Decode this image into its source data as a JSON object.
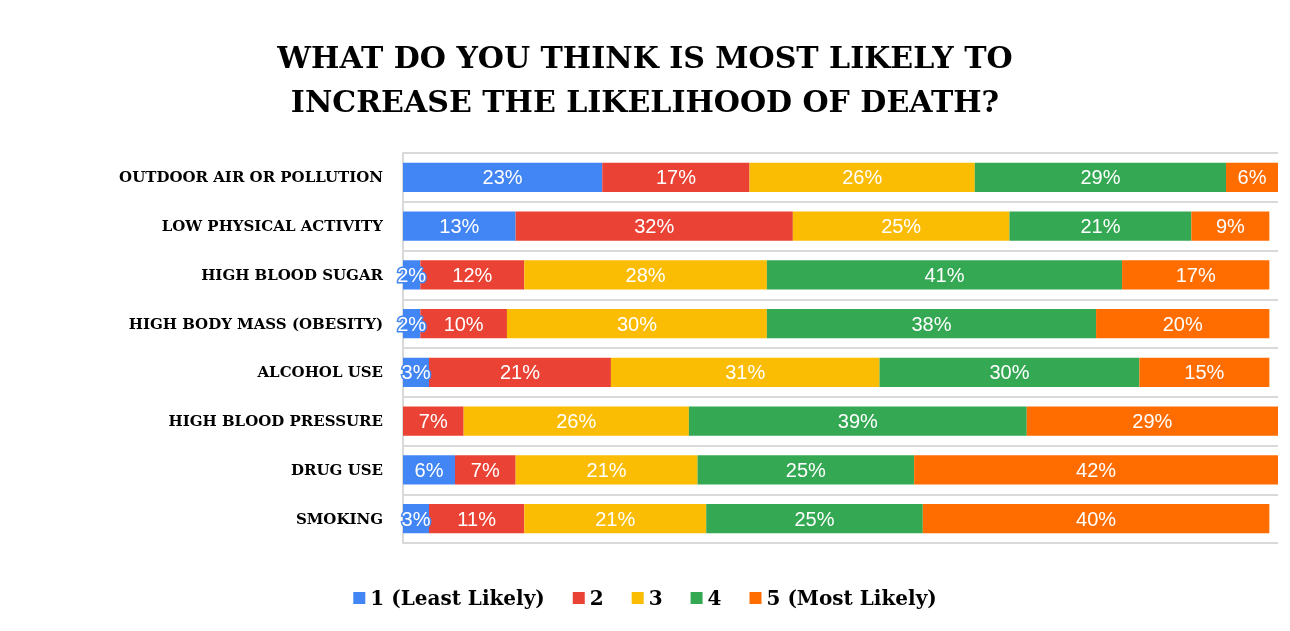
{
  "chart_data": {
    "type": "bar",
    "orientation": "horizontal",
    "stacked": true,
    "title": "WHAT DO YOU THINK IS MOST LIKELY TO\nINCREASE THE LIKELIHOOD OF DEATH?",
    "categories": [
      "OUTDOOR AIR OR POLLUTION",
      "LOW PHYSICAL ACTIVITY",
      "HIGH BLOOD SUGAR",
      "HIGH BODY MASS (OBESITY)",
      "ALCOHOL USE",
      "HIGH BLOOD PRESSURE",
      "DRUG USE",
      "SMOKING"
    ],
    "series": [
      {
        "name": "1 (Least Likely)",
        "color": "#4285f4",
        "values": [
          23,
          13,
          2,
          2,
          3,
          null,
          6,
          3
        ],
        "value_labels": [
          "23%",
          "13%",
          "2%",
          "2%",
          "3%",
          null,
          "6%",
          "3%"
        ]
      },
      {
        "name": "2",
        "color": "#ea4335",
        "values": [
          17,
          32,
          12,
          10,
          21,
          7,
          7,
          11
        ],
        "value_labels": [
          "17%",
          "32%",
          "12%",
          "10%",
          "21%",
          "7%",
          "7%",
          "11%"
        ]
      },
      {
        "name": "3",
        "color": "#fbbc04",
        "values": [
          26,
          25,
          28,
          30,
          31,
          26,
          21,
          21
        ],
        "value_labels": [
          "26%",
          "25%",
          "28%",
          "30%",
          "31%",
          "26%",
          "21%",
          "21%"
        ]
      },
      {
        "name": "4",
        "color": "#34a853",
        "values": [
          29,
          21,
          41,
          38,
          30,
          39,
          25,
          25
        ],
        "value_labels": [
          "29%",
          "21%",
          "41%",
          "38%",
          "30%",
          "39%",
          "25%",
          "25%"
        ]
      },
      {
        "name": "5 (Most Likely)",
        "color": "#ff6d01",
        "values": [
          6,
          9,
          17,
          20,
          15,
          29,
          42,
          40
        ],
        "value_labels": [
          "6%",
          "9%",
          "17%",
          "20%",
          "15%",
          "29%",
          "42%",
          "40%"
        ]
      }
    ],
    "xlim": [
      0,
      101
    ],
    "tick_labels": "y",
    "grid": "y",
    "legend": "bottom"
  }
}
